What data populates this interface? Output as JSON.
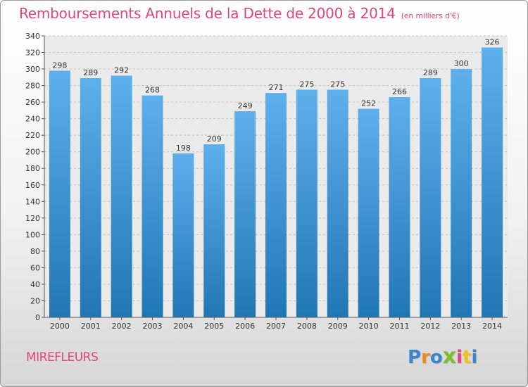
{
  "title": "Remboursements Annuels de la Dette de 2000 à 2014",
  "subtitle": "(en milliers d'€)",
  "town": "MIREFLEURS",
  "logo": "Proxiti",
  "colors": {
    "accent": "#e0457b",
    "bar_top": "#5eb0ec",
    "bar_bottom": "#2176b4"
  },
  "chart_data": {
    "type": "bar",
    "title": "Remboursements Annuels de la Dette de 2000 à 2014",
    "subtitle": "(en milliers d'€)",
    "xlabel": "",
    "ylabel": "",
    "ylim": [
      0,
      340
    ],
    "ytick_step": 20,
    "grid": true,
    "categories": [
      "2000",
      "2001",
      "2002",
      "2003",
      "2004",
      "2005",
      "2006",
      "2007",
      "2008",
      "2009",
      "2010",
      "2011",
      "2012",
      "2013",
      "2014"
    ],
    "values": [
      298,
      289,
      292,
      268,
      198,
      209,
      249,
      271,
      275,
      275,
      252,
      266,
      289,
      300,
      326
    ]
  }
}
